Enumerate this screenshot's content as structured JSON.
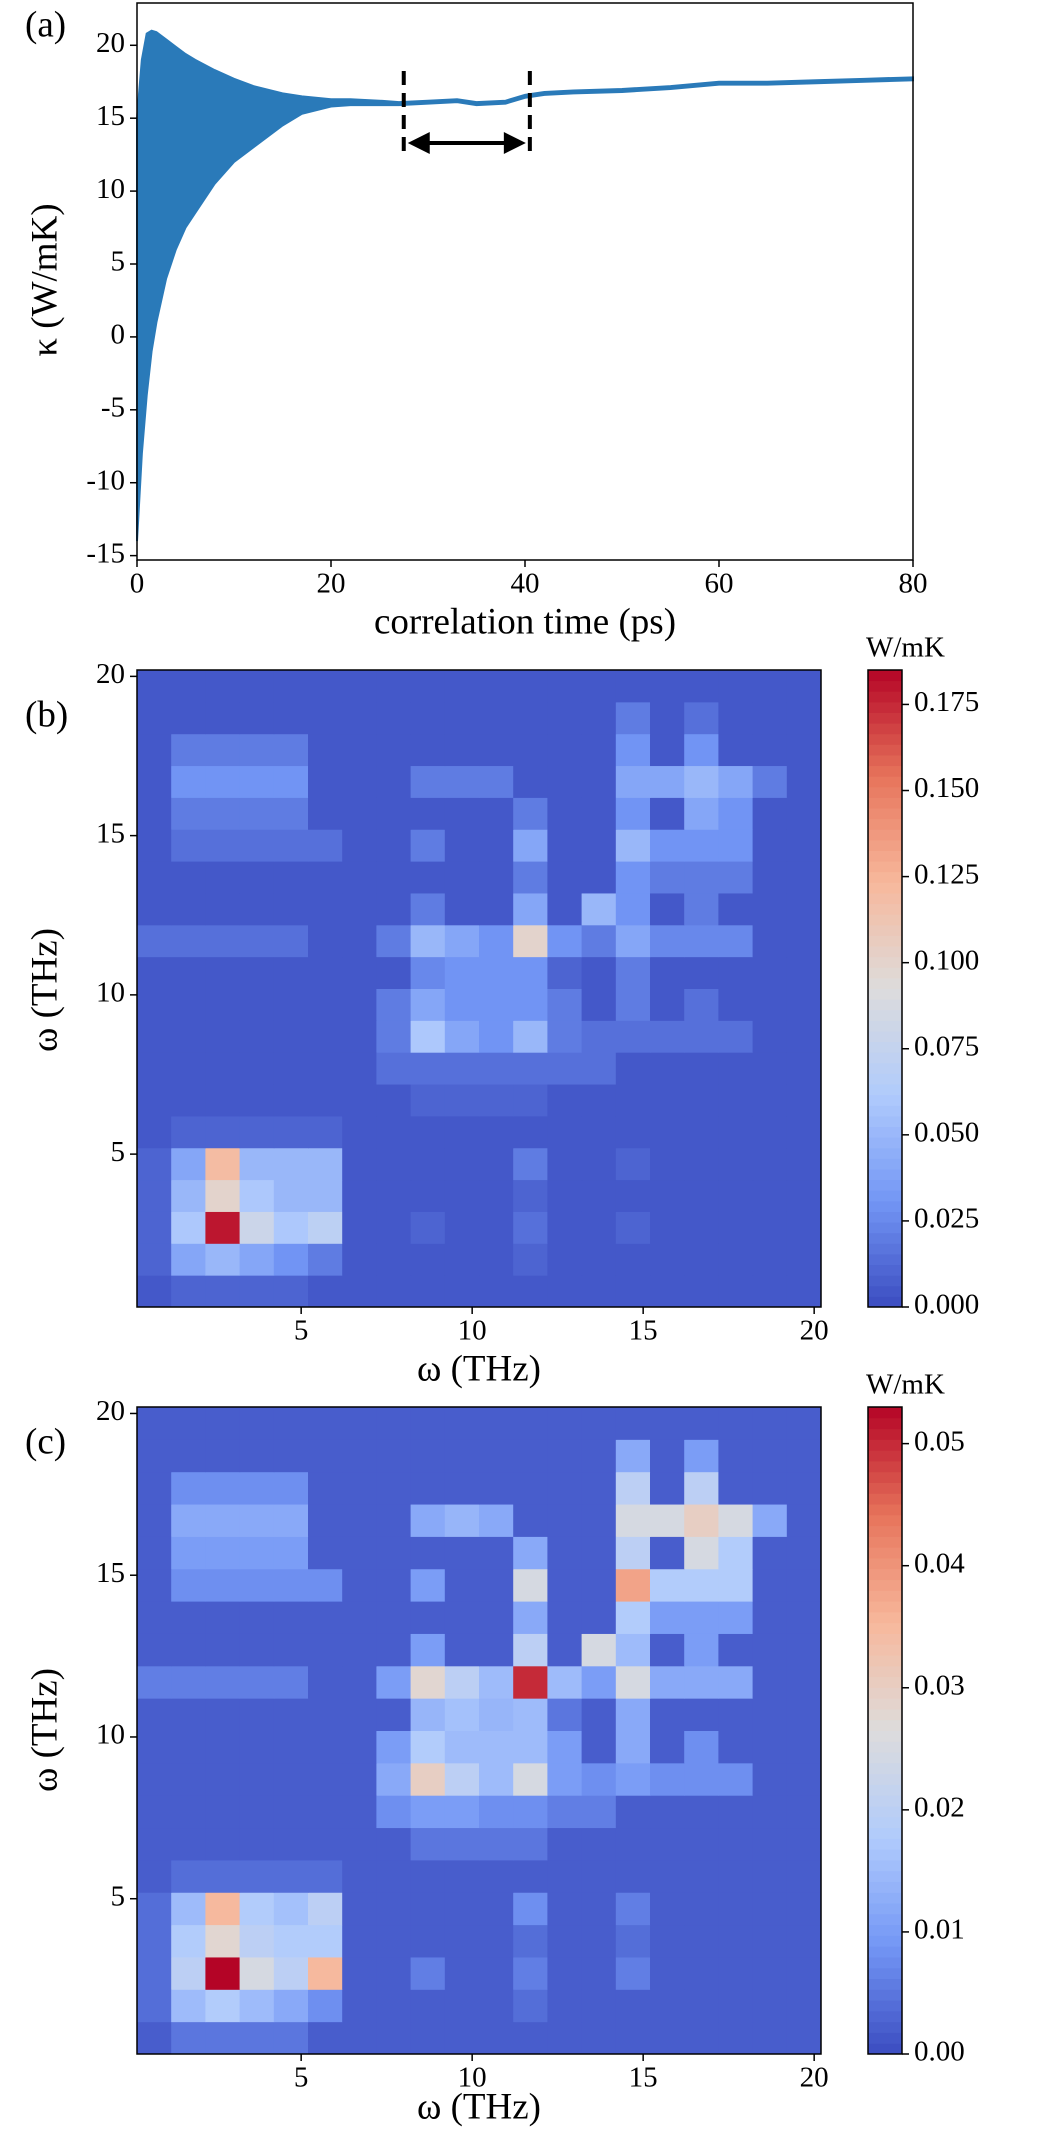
{
  "chart_data": [
    {
      "type": "band",
      "panel_label": "(a)",
      "xlabel": "correlation time (ps)",
      "ylabel": "κ (W/mK)",
      "color": "#2a7ab9",
      "x": [
        0,
        0.5,
        1,
        1.5,
        2,
        3,
        4,
        5,
        6,
        8,
        10,
        12,
        15,
        17,
        20,
        22,
        25,
        27,
        30,
        33,
        35,
        38,
        40,
        42,
        45,
        50,
        55,
        60,
        65,
        70,
        75,
        80
      ],
      "values": [
        15,
        19,
        20.8,
        21,
        20.9,
        20.4,
        19.9,
        19.4,
        19,
        18.3,
        17.7,
        17.2,
        16.7,
        16.5,
        16.3,
        16.3,
        16.2,
        16.1,
        16.2,
        16.3,
        16.1,
        16.2,
        16.6,
        16.8,
        16.9,
        17.0,
        17.2,
        17.5,
        17.5,
        17.6,
        17.7,
        17.8
      ],
      "lower": [
        -14,
        -8,
        -4,
        -1,
        1,
        4,
        6,
        7.5,
        8.5,
        10.5,
        12,
        13,
        14.5,
        15.3,
        15.8,
        15.9,
        15.9,
        15.9,
        16.0,
        16.1,
        15.9,
        16.0,
        16.4,
        16.6,
        16.7,
        16.8,
        17.0,
        17.3,
        17.3,
        17.4,
        17.5,
        17.6
      ],
      "window": [
        27.5,
        40.5
      ],
      "xlim": [
        0,
        80
      ],
      "xticks": [
        0,
        20,
        40,
        60,
        80
      ],
      "ylim": [
        -15.3,
        22.9
      ],
      "yticks": [
        -15,
        -10,
        -5,
        0,
        5,
        10,
        15,
        20
      ]
    },
    {
      "type": "heatmap",
      "panel_label": "(b)",
      "xlabel": "ω (THz)",
      "ylabel": "ω (THz)",
      "colorbar_label": "W/mK",
      "colormap": [
        "#3b4cc0",
        "#7396f5",
        "#b0cbfc",
        "#dddcdc",
        "#f7b89c",
        "#e7745b",
        "#b40426"
      ],
      "xlim": [
        0.2,
        20.2
      ],
      "ylim": [
        0.2,
        20.2
      ],
      "xticks": [
        5,
        10,
        15,
        20
      ],
      "yticks": [
        5,
        10,
        15,
        20
      ],
      "clim": [
        0,
        0.185
      ],
      "cticks": [
        {
          "value": 0,
          "label": "0.000"
        },
        {
          "value": 0.025,
          "label": "0.025"
        },
        {
          "value": 0.05,
          "label": "0.050"
        },
        {
          "value": 0.075,
          "label": "0.075"
        },
        {
          "value": 0.1,
          "label": "0.100"
        },
        {
          "value": 0.125,
          "label": "0.125"
        },
        {
          "value": 0.15,
          "label": "0.150"
        },
        {
          "value": 0.175,
          "label": "0.175"
        }
      ],
      "z": [
        [
          0.005,
          0.01,
          0.01,
          0.01,
          0.01,
          0.005,
          0.005,
          0.005,
          0.005,
          0.005,
          0.005,
          0.005,
          0.005,
          0.005,
          0.005,
          0.005,
          0.005,
          0.005,
          0.005,
          0.005
        ],
        [
          0.01,
          0.04,
          0.05,
          0.04,
          0.03,
          0.02,
          0.005,
          0.005,
          0.005,
          0.005,
          0.005,
          0.01,
          0.005,
          0.005,
          0.005,
          0.005,
          0.005,
          0.005,
          0.005,
          0.005
        ],
        [
          0.01,
          0.06,
          0.18,
          0.08,
          0.06,
          0.07,
          0.005,
          0.005,
          0.01,
          0.005,
          0.005,
          0.015,
          0.005,
          0.005,
          0.01,
          0.005,
          0.005,
          0.005,
          0.005,
          0.005
        ],
        [
          0.01,
          0.05,
          0.1,
          0.06,
          0.05,
          0.05,
          0.005,
          0.005,
          0.005,
          0.005,
          0.005,
          0.01,
          0.005,
          0.005,
          0.005,
          0.005,
          0.005,
          0.005,
          0.005,
          0.005
        ],
        [
          0.01,
          0.04,
          0.12,
          0.05,
          0.05,
          0.05,
          0.005,
          0.005,
          0.005,
          0.005,
          0.005,
          0.02,
          0.005,
          0.005,
          0.01,
          0.005,
          0.005,
          0.005,
          0.005,
          0.005
        ],
        [
          0.005,
          0.01,
          0.01,
          0.01,
          0.01,
          0.01,
          0.005,
          0.005,
          0.005,
          0.005,
          0.005,
          0.005,
          0.005,
          0.005,
          0.005,
          0.005,
          0.005,
          0.005,
          0.005,
          0.005
        ],
        [
          0.005,
          0.005,
          0.005,
          0.005,
          0.005,
          0.005,
          0.005,
          0.005,
          0.01,
          0.01,
          0.01,
          0.01,
          0.005,
          0.005,
          0.005,
          0.005,
          0.005,
          0.005,
          0.005,
          0.005
        ],
        [
          0.005,
          0.005,
          0.005,
          0.005,
          0.005,
          0.005,
          0.005,
          0.015,
          0.015,
          0.015,
          0.015,
          0.015,
          0.015,
          0.015,
          0.005,
          0.005,
          0.005,
          0.005,
          0.005,
          0.005
        ],
        [
          0.005,
          0.005,
          0.005,
          0.005,
          0.005,
          0.005,
          0.005,
          0.02,
          0.06,
          0.04,
          0.03,
          0.05,
          0.02,
          0.015,
          0.015,
          0.015,
          0.015,
          0.015,
          0.005,
          0.005
        ],
        [
          0.005,
          0.005,
          0.005,
          0.005,
          0.005,
          0.005,
          0.005,
          0.02,
          0.04,
          0.03,
          0.03,
          0.03,
          0.02,
          0.005,
          0.02,
          0.005,
          0.015,
          0.005,
          0.005,
          0.005
        ],
        [
          0.005,
          0.005,
          0.005,
          0.005,
          0.005,
          0.005,
          0.005,
          0.005,
          0.025,
          0.03,
          0.03,
          0.03,
          0.01,
          0.005,
          0.02,
          0.005,
          0.005,
          0.005,
          0.005,
          0.005
        ],
        [
          0.015,
          0.015,
          0.015,
          0.015,
          0.015,
          0.005,
          0.005,
          0.02,
          0.05,
          0.04,
          0.03,
          0.1,
          0.03,
          0.02,
          0.04,
          0.025,
          0.025,
          0.025,
          0.005,
          0.005
        ],
        [
          0.005,
          0.005,
          0.005,
          0.005,
          0.005,
          0.005,
          0.005,
          0.005,
          0.02,
          0.005,
          0.005,
          0.04,
          0.005,
          0.05,
          0.03,
          0.005,
          0.02,
          0.005,
          0.005,
          0.005
        ],
        [
          0.005,
          0.005,
          0.005,
          0.005,
          0.005,
          0.005,
          0.005,
          0.005,
          0.005,
          0.005,
          0.005,
          0.02,
          0.005,
          0.005,
          0.03,
          0.02,
          0.02,
          0.02,
          0.005,
          0.005
        ],
        [
          0.005,
          0.015,
          0.015,
          0.015,
          0.015,
          0.015,
          0.005,
          0.005,
          0.02,
          0.005,
          0.005,
          0.04,
          0.005,
          0.005,
          0.05,
          0.03,
          0.03,
          0.03,
          0.005,
          0.005
        ],
        [
          0.005,
          0.02,
          0.02,
          0.02,
          0.02,
          0.005,
          0.005,
          0.005,
          0.005,
          0.005,
          0.005,
          0.02,
          0.005,
          0.005,
          0.03,
          0.005,
          0.04,
          0.03,
          0.005,
          0.005
        ],
        [
          0.005,
          0.03,
          0.03,
          0.03,
          0.03,
          0.005,
          0.005,
          0.005,
          0.02,
          0.02,
          0.02,
          0.005,
          0.005,
          0.005,
          0.04,
          0.04,
          0.05,
          0.04,
          0.02,
          0.005
        ],
        [
          0.005,
          0.02,
          0.02,
          0.02,
          0.02,
          0.005,
          0.005,
          0.005,
          0.005,
          0.005,
          0.005,
          0.005,
          0.005,
          0.005,
          0.03,
          0.005,
          0.03,
          0.005,
          0.005,
          0.005
        ],
        [
          0.005,
          0.005,
          0.005,
          0.005,
          0.005,
          0.005,
          0.005,
          0.005,
          0.005,
          0.005,
          0.005,
          0.005,
          0.005,
          0.005,
          0.02,
          0.005,
          0.015,
          0.005,
          0.005,
          0.005
        ],
        [
          0.005,
          0.005,
          0.005,
          0.005,
          0.005,
          0.005,
          0.005,
          0.005,
          0.005,
          0.005,
          0.005,
          0.005,
          0.005,
          0.005,
          0.005,
          0.005,
          0.005,
          0.005,
          0.005,
          0.005
        ]
      ]
    },
    {
      "type": "heatmap",
      "panel_label": "(c)",
      "xlabel": "ω (THz)",
      "ylabel": "ω (THz)",
      "colorbar_label": "W/mK",
      "colormap": [
        "#3b4cc0",
        "#7396f5",
        "#b0cbfc",
        "#dddcdc",
        "#f7b89c",
        "#e7745b",
        "#b40426"
      ],
      "xlim": [
        0.2,
        20.2
      ],
      "ylim": [
        0.2,
        20.2
      ],
      "xticks": [
        5,
        10,
        15,
        20
      ],
      "yticks": [
        5,
        10,
        15,
        20
      ],
      "clim": [
        0,
        0.053
      ],
      "cticks": [
        {
          "value": 0,
          "label": "0.00"
        },
        0.01,
        0.02,
        0.03,
        0.04,
        0.05
      ],
      "z": [
        [
          0.002,
          0.005,
          0.005,
          0.005,
          0.005,
          0.002,
          0.002,
          0.002,
          0.002,
          0.002,
          0.002,
          0.002,
          0.002,
          0.002,
          0.002,
          0.002,
          0.002,
          0.002,
          0.002,
          0.002
        ],
        [
          0.004,
          0.015,
          0.018,
          0.015,
          0.012,
          0.008,
          0.002,
          0.002,
          0.002,
          0.002,
          0.002,
          0.004,
          0.002,
          0.002,
          0.002,
          0.002,
          0.002,
          0.002,
          0.002,
          0.002
        ],
        [
          0.004,
          0.02,
          0.053,
          0.025,
          0.02,
          0.035,
          0.002,
          0.002,
          0.006,
          0.002,
          0.002,
          0.006,
          0.002,
          0.002,
          0.006,
          0.002,
          0.002,
          0.002,
          0.002,
          0.002
        ],
        [
          0.004,
          0.018,
          0.028,
          0.02,
          0.018,
          0.018,
          0.002,
          0.002,
          0.002,
          0.002,
          0.002,
          0.004,
          0.002,
          0.002,
          0.004,
          0.002,
          0.002,
          0.002,
          0.002,
          0.002
        ],
        [
          0.004,
          0.015,
          0.035,
          0.018,
          0.016,
          0.02,
          0.002,
          0.002,
          0.002,
          0.002,
          0.002,
          0.008,
          0.002,
          0.002,
          0.006,
          0.002,
          0.002,
          0.002,
          0.002,
          0.002
        ],
        [
          0.002,
          0.004,
          0.004,
          0.004,
          0.004,
          0.004,
          0.002,
          0.002,
          0.002,
          0.002,
          0.002,
          0.002,
          0.002,
          0.002,
          0.002,
          0.002,
          0.002,
          0.002,
          0.002,
          0.002
        ],
        [
          0.002,
          0.002,
          0.002,
          0.002,
          0.002,
          0.002,
          0.002,
          0.002,
          0.005,
          0.005,
          0.005,
          0.005,
          0.002,
          0.002,
          0.002,
          0.002,
          0.002,
          0.002,
          0.002,
          0.002
        ],
        [
          0.002,
          0.002,
          0.002,
          0.002,
          0.002,
          0.002,
          0.002,
          0.008,
          0.01,
          0.01,
          0.008,
          0.008,
          0.006,
          0.006,
          0.002,
          0.002,
          0.002,
          0.002,
          0.002,
          0.002
        ],
        [
          0.002,
          0.002,
          0.002,
          0.002,
          0.002,
          0.002,
          0.002,
          0.012,
          0.03,
          0.02,
          0.015,
          0.025,
          0.01,
          0.008,
          0.01,
          0.008,
          0.008,
          0.008,
          0.002,
          0.002
        ],
        [
          0.002,
          0.002,
          0.002,
          0.002,
          0.002,
          0.002,
          0.002,
          0.01,
          0.018,
          0.015,
          0.015,
          0.015,
          0.01,
          0.002,
          0.012,
          0.002,
          0.008,
          0.002,
          0.002,
          0.002
        ],
        [
          0.002,
          0.002,
          0.002,
          0.002,
          0.002,
          0.002,
          0.002,
          0.002,
          0.014,
          0.016,
          0.014,
          0.015,
          0.005,
          0.002,
          0.012,
          0.002,
          0.002,
          0.002,
          0.002,
          0.002
        ],
        [
          0.006,
          0.006,
          0.006,
          0.006,
          0.006,
          0.002,
          0.002,
          0.01,
          0.028,
          0.02,
          0.015,
          0.05,
          0.015,
          0.01,
          0.025,
          0.012,
          0.012,
          0.012,
          0.002,
          0.002
        ],
        [
          0.002,
          0.002,
          0.002,
          0.002,
          0.002,
          0.002,
          0.002,
          0.002,
          0.01,
          0.002,
          0.002,
          0.02,
          0.002,
          0.025,
          0.015,
          0.002,
          0.01,
          0.002,
          0.002,
          0.002
        ],
        [
          0.002,
          0.002,
          0.002,
          0.002,
          0.002,
          0.002,
          0.002,
          0.002,
          0.002,
          0.002,
          0.002,
          0.012,
          0.002,
          0.002,
          0.018,
          0.01,
          0.01,
          0.01,
          0.002,
          0.002
        ],
        [
          0.002,
          0.008,
          0.008,
          0.008,
          0.008,
          0.008,
          0.002,
          0.002,
          0.01,
          0.002,
          0.002,
          0.025,
          0.002,
          0.002,
          0.038,
          0.018,
          0.018,
          0.018,
          0.002,
          0.002
        ],
        [
          0.002,
          0.01,
          0.01,
          0.01,
          0.01,
          0.002,
          0.002,
          0.002,
          0.002,
          0.002,
          0.002,
          0.012,
          0.002,
          0.002,
          0.02,
          0.002,
          0.025,
          0.018,
          0.002,
          0.002
        ],
        [
          0.002,
          0.012,
          0.012,
          0.012,
          0.012,
          0.002,
          0.002,
          0.002,
          0.012,
          0.014,
          0.012,
          0.002,
          0.002,
          0.002,
          0.025,
          0.025,
          0.03,
          0.025,
          0.012,
          0.002
        ],
        [
          0.002,
          0.008,
          0.008,
          0.008,
          0.008,
          0.002,
          0.002,
          0.002,
          0.002,
          0.002,
          0.002,
          0.002,
          0.002,
          0.002,
          0.02,
          0.002,
          0.02,
          0.002,
          0.002,
          0.002
        ],
        [
          0.002,
          0.002,
          0.002,
          0.002,
          0.002,
          0.002,
          0.002,
          0.002,
          0.002,
          0.002,
          0.002,
          0.002,
          0.002,
          0.002,
          0.012,
          0.002,
          0.01,
          0.002,
          0.002,
          0.002
        ],
        [
          0.002,
          0.002,
          0.002,
          0.002,
          0.002,
          0.002,
          0.002,
          0.002,
          0.002,
          0.002,
          0.002,
          0.002,
          0.002,
          0.002,
          0.002,
          0.002,
          0.002,
          0.002,
          0.002,
          0.002
        ]
      ]
    }
  ]
}
